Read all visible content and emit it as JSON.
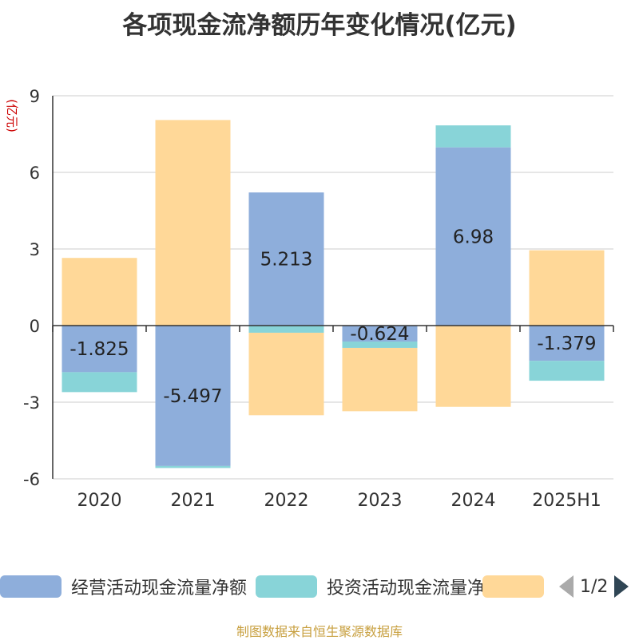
{
  "title": "各项现金流净额历年变化情况(亿元)",
  "source_note": "制图数据来自恒生聚源数据库",
  "pager": {
    "text": "1/2"
  },
  "chart_data": {
    "type": "bar",
    "stacked": true,
    "title": "各项现金流净额历年变化情况(亿元)",
    "ylabel": "(亿元)",
    "ylim": [
      -6,
      9
    ],
    "yticks": [
      -6,
      -3,
      0,
      3,
      6,
      9
    ],
    "grid": true,
    "legend_position": "bottom",
    "categories": [
      "2020",
      "2021",
      "2022",
      "2023",
      "2024",
      "2025H1"
    ],
    "series": [
      {
        "name": "经营活动现金流量净额",
        "color": "#8eaedb",
        "values": [
          -1.825,
          -5.497,
          5.213,
          -0.624,
          6.98,
          -1.379
        ],
        "labels": [
          "-1.825",
          "-5.497",
          "5.213",
          "-0.624",
          "6.98",
          "-1.379"
        ]
      },
      {
        "name": "投资活动现金流量净额",
        "color": "#88d4d8",
        "values": [
          -0.78,
          -0.08,
          -0.28,
          -0.25,
          0.86,
          -0.78
        ]
      },
      {
        "name": "",
        "color": "#ffd898",
        "values": [
          2.65,
          8.05,
          -3.23,
          -2.48,
          -3.18,
          2.95
        ]
      }
    ]
  }
}
